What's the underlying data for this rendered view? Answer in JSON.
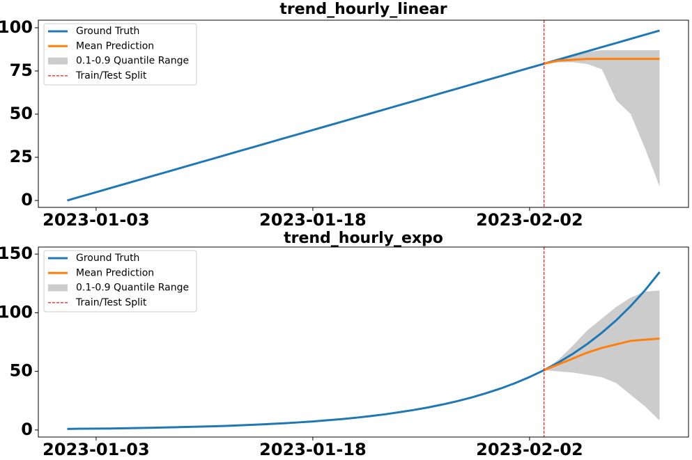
{
  "chart_data": [
    {
      "type": "line",
      "title": "trend_hourly_linear",
      "x": [
        "2023-01-01",
        "2023-01-02",
        "2023-01-03",
        "2023-01-04",
        "2023-01-05",
        "2023-01-06",
        "2023-01-07",
        "2023-01-08",
        "2023-01-09",
        "2023-01-10",
        "2023-01-11",
        "2023-01-12",
        "2023-01-13",
        "2023-01-14",
        "2023-01-15",
        "2023-01-16",
        "2023-01-17",
        "2023-01-18",
        "2023-01-19",
        "2023-01-20",
        "2023-01-21",
        "2023-01-22",
        "2023-01-23",
        "2023-01-24",
        "2023-01-25",
        "2023-01-26",
        "2023-01-27",
        "2023-01-28",
        "2023-01-29",
        "2023-01-30",
        "2023-01-31",
        "2023-02-01",
        "2023-02-02",
        "2023-02-03",
        "2023-02-04",
        "2023-02-05",
        "2023-02-06",
        "2023-02-07",
        "2023-02-08",
        "2023-02-09",
        "2023-02-10",
        "2023-02-11"
      ],
      "series": [
        {
          "name": "Ground Truth",
          "color": "#1f77b4",
          "values": [
            0,
            2.4,
            4.8,
            7.2,
            9.6,
            12,
            14.4,
            16.8,
            19.2,
            21.6,
            24,
            26.4,
            28.8,
            31.2,
            33.6,
            36,
            38.4,
            40.8,
            43.2,
            45.6,
            48,
            50.4,
            52.8,
            55.2,
            57.6,
            60,
            62.4,
            64.8,
            67.2,
            69.6,
            72,
            74.4,
            76.8,
            79.2,
            81.6,
            84,
            86.4,
            88.8,
            91.2,
            93.6,
            96,
            98.4
          ]
        },
        {
          "name": "Mean Prediction",
          "color": "#ff7f0e",
          "values": [
            null,
            null,
            null,
            null,
            null,
            null,
            null,
            null,
            null,
            null,
            null,
            null,
            null,
            null,
            null,
            null,
            null,
            null,
            null,
            null,
            null,
            null,
            null,
            null,
            null,
            null,
            null,
            null,
            null,
            null,
            null,
            null,
            null,
            79.2,
            81,
            81.5,
            82,
            82,
            82,
            82,
            82,
            82
          ]
        }
      ],
      "band": {
        "name": "0.1-0.9 Quantile Range",
        "color": "#cccccc",
        "lower": [
          null,
          null,
          null,
          null,
          null,
          null,
          null,
          null,
          null,
          null,
          null,
          null,
          null,
          null,
          null,
          null,
          null,
          null,
          null,
          null,
          null,
          null,
          null,
          null,
          null,
          null,
          null,
          null,
          null,
          null,
          null,
          null,
          null,
          79.2,
          80,
          80,
          79,
          76,
          58,
          50,
          30,
          8
        ],
        "upper": [
          null,
          null,
          null,
          null,
          null,
          null,
          null,
          null,
          null,
          null,
          null,
          null,
          null,
          null,
          null,
          null,
          null,
          null,
          null,
          null,
          null,
          null,
          null,
          null,
          null,
          null,
          null,
          null,
          null,
          null,
          null,
          null,
          null,
          79.2,
          82,
          84,
          86,
          87,
          87,
          87,
          87,
          87
        ]
      },
      "split": {
        "name": "Train/Test Split",
        "color": "#e41a1c",
        "x": "2023-02-03"
      },
      "xlim": [
        "2022-12-30",
        "2023-02-13"
      ],
      "xticks": [
        "2023-01-03",
        "2023-01-18",
        "2023-02-02"
      ],
      "ylim": [
        -4,
        104.4
      ],
      "yticks": [
        0,
        25,
        50,
        75,
        100
      ],
      "legend": "upper left"
    },
    {
      "type": "line",
      "title": "trend_hourly_expo",
      "x": [
        "2023-01-01",
        "2023-01-02",
        "2023-01-03",
        "2023-01-04",
        "2023-01-05",
        "2023-01-06",
        "2023-01-07",
        "2023-01-08",
        "2023-01-09",
        "2023-01-10",
        "2023-01-11",
        "2023-01-12",
        "2023-01-13",
        "2023-01-14",
        "2023-01-15",
        "2023-01-16",
        "2023-01-17",
        "2023-01-18",
        "2023-01-19",
        "2023-01-20",
        "2023-01-21",
        "2023-01-22",
        "2023-01-23",
        "2023-01-24",
        "2023-01-25",
        "2023-01-26",
        "2023-01-27",
        "2023-01-28",
        "2023-01-29",
        "2023-01-30",
        "2023-01-31",
        "2023-02-01",
        "2023-02-02",
        "2023-02-03",
        "2023-02-04",
        "2023-02-05",
        "2023-02-06",
        "2023-02-07",
        "2023-02-08",
        "2023-02-09",
        "2023-02-10",
        "2023-02-11"
      ],
      "series": [
        {
          "name": "Ground Truth",
          "color": "#1f77b4",
          "values": [
            0.9,
            1.1,
            1.2,
            1.3,
            1.5,
            1.7,
            1.9,
            2.2,
            2.5,
            2.8,
            3.1,
            3.5,
            4,
            4.5,
            5.1,
            5.7,
            6.5,
            7.3,
            8.3,
            9.3,
            10.5,
            11.9,
            13.4,
            15.2,
            17.1,
            19.3,
            21.8,
            24.6,
            27.8,
            31.4,
            35.4,
            40,
            45.2,
            51,
            57.6,
            65,
            73.4,
            82.9,
            93.6,
            105.7,
            119.3,
            134.7
          ]
        },
        {
          "name": "Mean Prediction",
          "color": "#ff7f0e",
          "values": [
            null,
            null,
            null,
            null,
            null,
            null,
            null,
            null,
            null,
            null,
            null,
            null,
            null,
            null,
            null,
            null,
            null,
            null,
            null,
            null,
            null,
            null,
            null,
            null,
            null,
            null,
            null,
            null,
            null,
            null,
            null,
            null,
            null,
            51,
            56,
            61,
            66,
            70,
            73,
            76,
            77,
            78
          ]
        }
      ],
      "band": {
        "name": "0.1-0.9 Quantile Range",
        "color": "#cccccc",
        "lower": [
          null,
          null,
          null,
          null,
          null,
          null,
          null,
          null,
          null,
          null,
          null,
          null,
          null,
          null,
          null,
          null,
          null,
          null,
          null,
          null,
          null,
          null,
          null,
          null,
          null,
          null,
          null,
          null,
          null,
          null,
          null,
          null,
          null,
          51,
          50,
          49,
          47,
          45,
          40,
          30,
          20,
          8
        ],
        "upper": [
          null,
          null,
          null,
          null,
          null,
          null,
          null,
          null,
          null,
          null,
          null,
          null,
          null,
          null,
          null,
          null,
          null,
          null,
          null,
          null,
          null,
          null,
          null,
          null,
          null,
          null,
          null,
          null,
          null,
          null,
          null,
          null,
          null,
          51,
          60,
          72,
          85,
          95,
          105,
          113,
          118,
          119
        ]
      },
      "split": {
        "name": "Train/Test Split",
        "color": "#e41a1c",
        "x": "2023-02-03"
      },
      "xlim": [
        "2022-12-30",
        "2023-02-13"
      ],
      "xticks": [
        "2023-01-03",
        "2023-01-18",
        "2023-02-02"
      ],
      "ylim": [
        -6,
        156
      ],
      "yticks": [
        0,
        50,
        100,
        150
      ],
      "legend": "upper left"
    }
  ]
}
